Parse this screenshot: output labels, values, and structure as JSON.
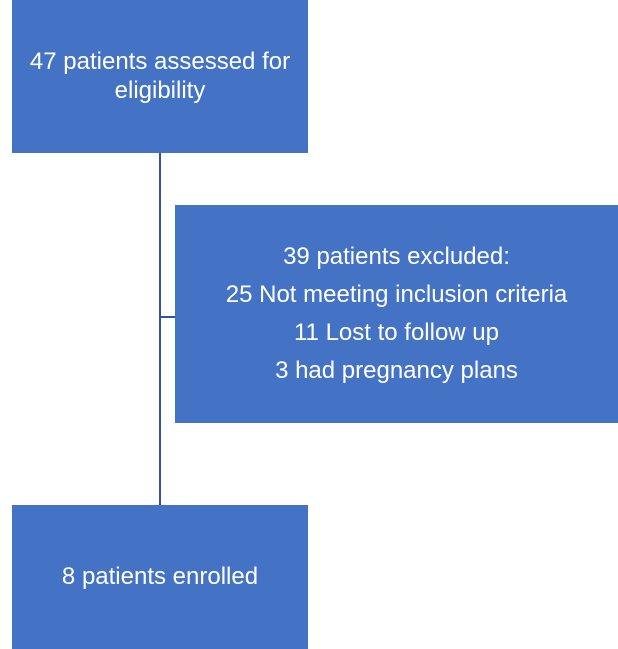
{
  "nodes": [
    {
      "label": "47 patients assessed for eligibility"
    },
    {
      "lines": [
        "39 patients excluded:",
        "25 Not meeting inclusion criteria",
        "11 Lost to follow up",
        "3 had pregnancy plans"
      ]
    },
    {
      "label": "8 patients enrolled"
    }
  ]
}
